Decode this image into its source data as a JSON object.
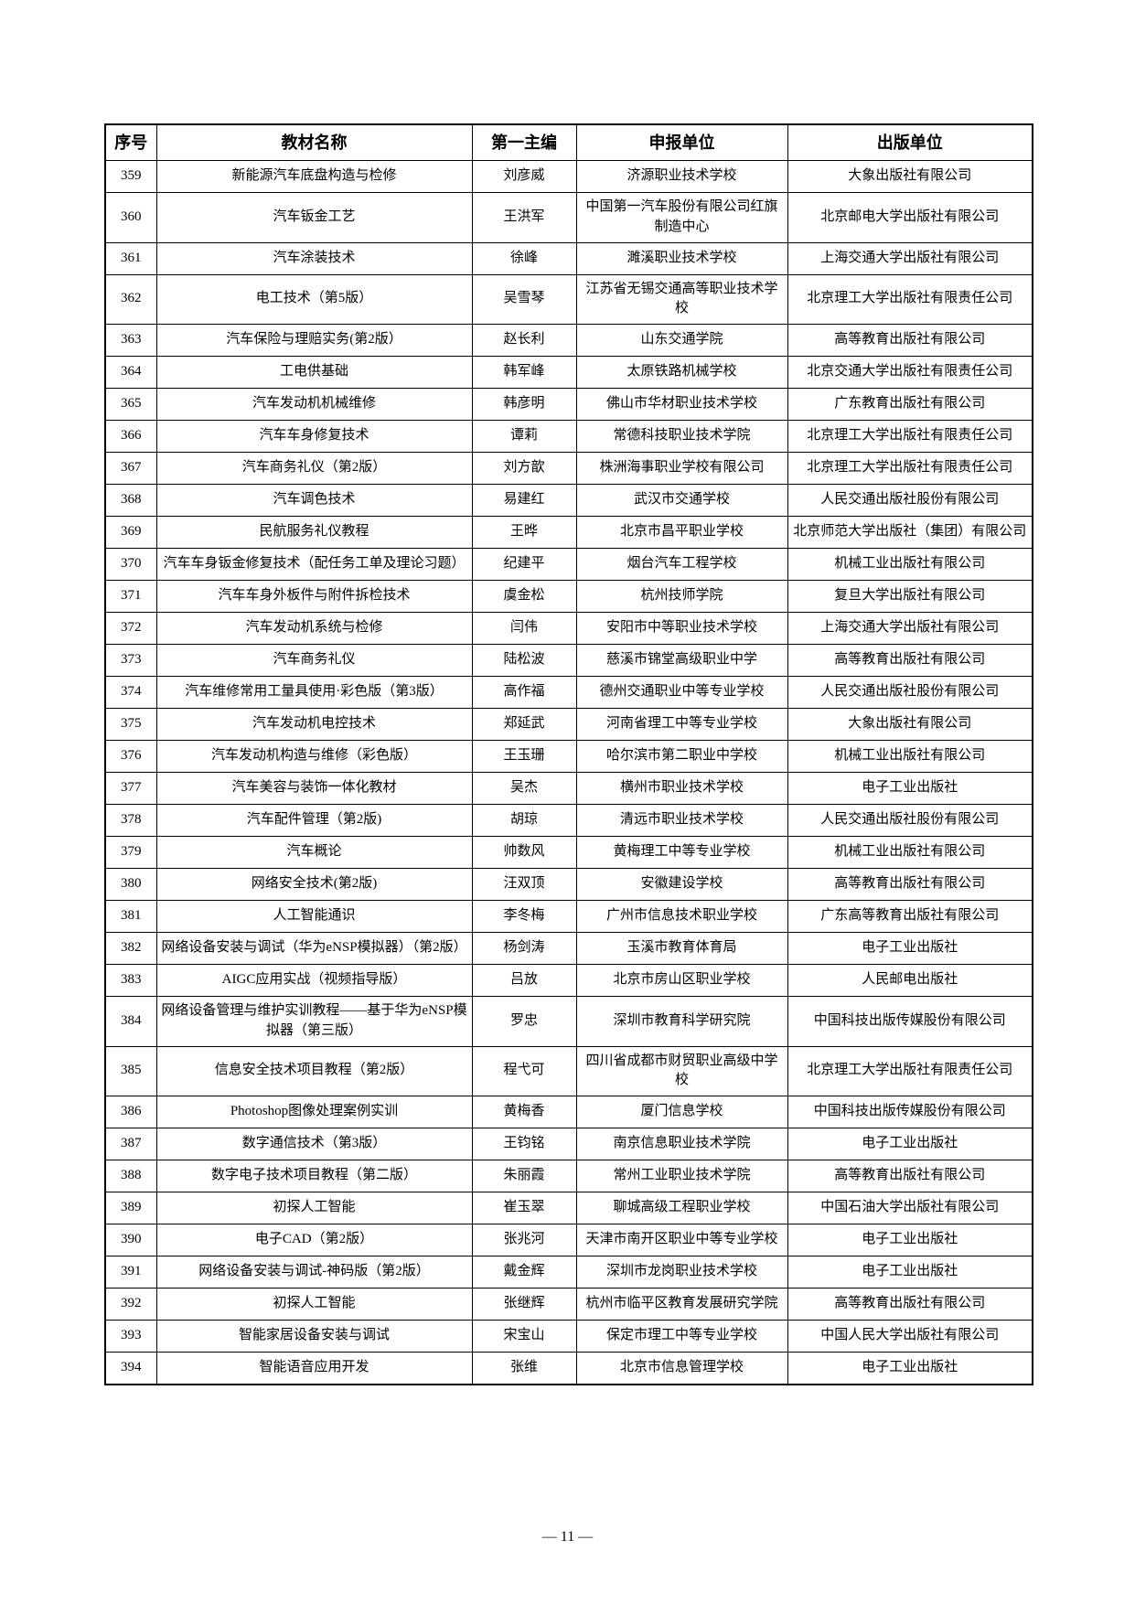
{
  "page": {
    "footer_page_label": "—  11  —"
  },
  "table": {
    "columns": [
      "序号",
      "教材名称",
      "第一主编",
      "申报单位",
      "出版单位"
    ],
    "rows": [
      {
        "no": "359",
        "title": "新能源汽车底盘构造与检修",
        "editor": "刘彦威",
        "applicant": "济源职业技术学校",
        "publisher": "大象出版社有限公司"
      },
      {
        "no": "360",
        "title": "汽车钣金工艺",
        "editor": "王洪军",
        "applicant": "中国第一汽车股份有限公司红旗制造中心",
        "publisher": "北京邮电大学出版社有限公司"
      },
      {
        "no": "361",
        "title": "汽车涂装技术",
        "editor": "徐峰",
        "applicant": "濉溪职业技术学校",
        "publisher": "上海交通大学出版社有限公司"
      },
      {
        "no": "362",
        "title": "电工技术（第5版）",
        "editor": "吴雪琴",
        "applicant": "江苏省无锡交通高等职业技术学校",
        "publisher": "北京理工大学出版社有限责任公司"
      },
      {
        "no": "363",
        "title": "汽车保险与理赔实务(第2版）",
        "editor": "赵长利",
        "applicant": "山东交通学院",
        "publisher": "高等教育出版社有限公司"
      },
      {
        "no": "364",
        "title": "工电供基础",
        "editor": "韩军峰",
        "applicant": "太原铁路机械学校",
        "publisher": "北京交通大学出版社有限责任公司"
      },
      {
        "no": "365",
        "title": "汽车发动机机械维修",
        "editor": "韩彦明",
        "applicant": "佛山市华材职业技术学校",
        "publisher": "广东教育出版社有限公司"
      },
      {
        "no": "366",
        "title": "汽车车身修复技术",
        "editor": "谭莉",
        "applicant": "常德科技职业技术学院",
        "publisher": "北京理工大学出版社有限责任公司"
      },
      {
        "no": "367",
        "title": "汽车商务礼仪（第2版）",
        "editor": "刘方歆",
        "applicant": "株洲海事职业学校有限公司",
        "publisher": "北京理工大学出版社有限责任公司"
      },
      {
        "no": "368",
        "title": "汽车调色技术",
        "editor": "易建红",
        "applicant": "武汉市交通学校",
        "publisher": "人民交通出版社股份有限公司"
      },
      {
        "no": "369",
        "title": "民航服务礼仪教程",
        "editor": "王晔",
        "applicant": "北京市昌平职业学校",
        "publisher": "北京师范大学出版社（集团）有限公司"
      },
      {
        "no": "370",
        "title": "汽车车身钣金修复技术（配任务工单及理论习题）",
        "editor": "纪建平",
        "applicant": "烟台汽车工程学校",
        "publisher": "机械工业出版社有限公司"
      },
      {
        "no": "371",
        "title": "汽车车身外板件与附件拆检技术",
        "editor": "虞金松",
        "applicant": "杭州技师学院",
        "publisher": "复旦大学出版社有限公司"
      },
      {
        "no": "372",
        "title": "汽车发动机系统与检修",
        "editor": "闫伟",
        "applicant": "安阳市中等职业技术学校",
        "publisher": "上海交通大学出版社有限公司"
      },
      {
        "no": "373",
        "title": "汽车商务礼仪",
        "editor": "陆松波",
        "applicant": "慈溪市锦堂高级职业中学",
        "publisher": "高等教育出版社有限公司"
      },
      {
        "no": "374",
        "title": "汽车维修常用工量具使用·彩色版（第3版）",
        "editor": "高作福",
        "applicant": "德州交通职业中等专业学校",
        "publisher": "人民交通出版社股份有限公司"
      },
      {
        "no": "375",
        "title": "汽车发动机电控技术",
        "editor": "郑延武",
        "applicant": "河南省理工中等专业学校",
        "publisher": "大象出版社有限公司"
      },
      {
        "no": "376",
        "title": "汽车发动机构造与维修（彩色版）",
        "editor": "王玉珊",
        "applicant": "哈尔滨市第二职业中学校",
        "publisher": "机械工业出版社有限公司"
      },
      {
        "no": "377",
        "title": "汽车美容与装饰一体化教材",
        "editor": "吴杰",
        "applicant": "横州市职业技术学校",
        "publisher": "电子工业出版社"
      },
      {
        "no": "378",
        "title": "汽车配件管理（第2版)",
        "editor": "胡琼",
        "applicant": "清远市职业技术学校",
        "publisher": "人民交通出版社股份有限公司"
      },
      {
        "no": "379",
        "title": "汽车概论",
        "editor": "帅数风",
        "applicant": "黄梅理工中等专业学校",
        "publisher": "机械工业出版社有限公司"
      },
      {
        "no": "380",
        "title": "网络安全技术(第2版)",
        "editor": "汪双顶",
        "applicant": "安徽建设学校",
        "publisher": "高等教育出版社有限公司"
      },
      {
        "no": "381",
        "title": "人工智能通识",
        "editor": "李冬梅",
        "applicant": "广州市信息技术职业学校",
        "publisher": "广东高等教育出版社有限公司"
      },
      {
        "no": "382",
        "title": "网络设备安装与调试（华为eNSP模拟器）（第2版）",
        "editor": "杨剑涛",
        "applicant": "玉溪市教育体育局",
        "publisher": "电子工业出版社"
      },
      {
        "no": "383",
        "title": "AIGC应用实战（视频指导版）",
        "editor": "吕放",
        "applicant": "北京市房山区职业学校",
        "publisher": "人民邮电出版社"
      },
      {
        "no": "384",
        "title": "网络设备管理与维护实训教程——基于华为eNSP模拟器（第三版）",
        "editor": "罗忠",
        "applicant": "深圳市教育科学研究院",
        "publisher": "中国科技出版传媒股份有限公司"
      },
      {
        "no": "385",
        "title": "信息安全技术项目教程（第2版）",
        "editor": "程弋可",
        "applicant": "四川省成都市财贸职业高级中学校",
        "publisher": "北京理工大学出版社有限责任公司"
      },
      {
        "no": "386",
        "title": "Photoshop图像处理案例实训",
        "editor": "黄梅香",
        "applicant": "厦门信息学校",
        "publisher": "中国科技出版传媒股份有限公司"
      },
      {
        "no": "387",
        "title": "数字通信技术（第3版）",
        "editor": "王钧铭",
        "applicant": "南京信息职业技术学院",
        "publisher": "电子工业出版社"
      },
      {
        "no": "388",
        "title": "数字电子技术项目教程（第二版）",
        "editor": "朱丽霞",
        "applicant": "常州工业职业技术学院",
        "publisher": "高等教育出版社有限公司"
      },
      {
        "no": "389",
        "title": "初探人工智能",
        "editor": "崔玉翠",
        "applicant": "聊城高级工程职业学校",
        "publisher": "中国石油大学出版社有限公司"
      },
      {
        "no": "390",
        "title": "电子CAD（第2版）",
        "editor": "张兆河",
        "applicant": "天津市南开区职业中等专业学校",
        "publisher": "电子工业出版社"
      },
      {
        "no": "391",
        "title": "网络设备安装与调试-神码版（第2版）",
        "editor": "戴金辉",
        "applicant": "深圳市龙岗职业技术学校",
        "publisher": "电子工业出版社"
      },
      {
        "no": "392",
        "title": "初探人工智能",
        "editor": "张继辉",
        "applicant": "杭州市临平区教育发展研究学院",
        "publisher": "高等教育出版社有限公司"
      },
      {
        "no": "393",
        "title": "智能家居设备安装与调试",
        "editor": "宋宝山",
        "applicant": "保定市理工中等专业学校",
        "publisher": "中国人民大学出版社有限公司"
      },
      {
        "no": "394",
        "title": "智能语音应用开发",
        "editor": "张维",
        "applicant": "北京市信息管理学校",
        "publisher": "电子工业出版社"
      }
    ]
  }
}
